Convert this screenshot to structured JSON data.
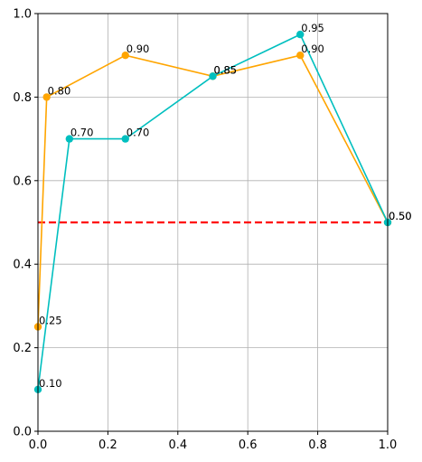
{
  "chart_data": {
    "type": "line",
    "title": "",
    "xlabel": "",
    "ylabel": "",
    "xlim": [
      0,
      1
    ],
    "ylim": [
      0,
      1
    ],
    "xticks": [
      "0.0",
      "0.2",
      "0.4",
      "0.6",
      "0.8",
      "1.0"
    ],
    "yticks": [
      "0.0",
      "0.2",
      "0.4",
      "0.6",
      "0.8",
      "1.0"
    ],
    "grid": true,
    "series": [
      {
        "color": "#ffa500",
        "marker": "circle",
        "x": [
          0.0,
          0.025,
          0.25,
          0.5,
          0.75,
          1.0
        ],
        "y": [
          0.25,
          0.8,
          0.9,
          0.85,
          0.9,
          0.5
        ],
        "labels": [
          "0.25",
          "0.80",
          "0.90",
          "0.85",
          "0.90",
          "0.50"
        ]
      },
      {
        "color": "#00bfbf",
        "marker": "circle",
        "x": [
          0.0,
          0.09,
          0.25,
          0.5,
          0.75,
          1.0
        ],
        "y": [
          0.1,
          0.7,
          0.7,
          0.85,
          0.95,
          0.5
        ],
        "labels": [
          "0.10",
          "0.70",
          "0.70",
          "0.85",
          "0.95",
          "0.50"
        ]
      }
    ],
    "reference_line": {
      "y": 0.5,
      "color": "#ff0000",
      "style": "dashed"
    }
  }
}
